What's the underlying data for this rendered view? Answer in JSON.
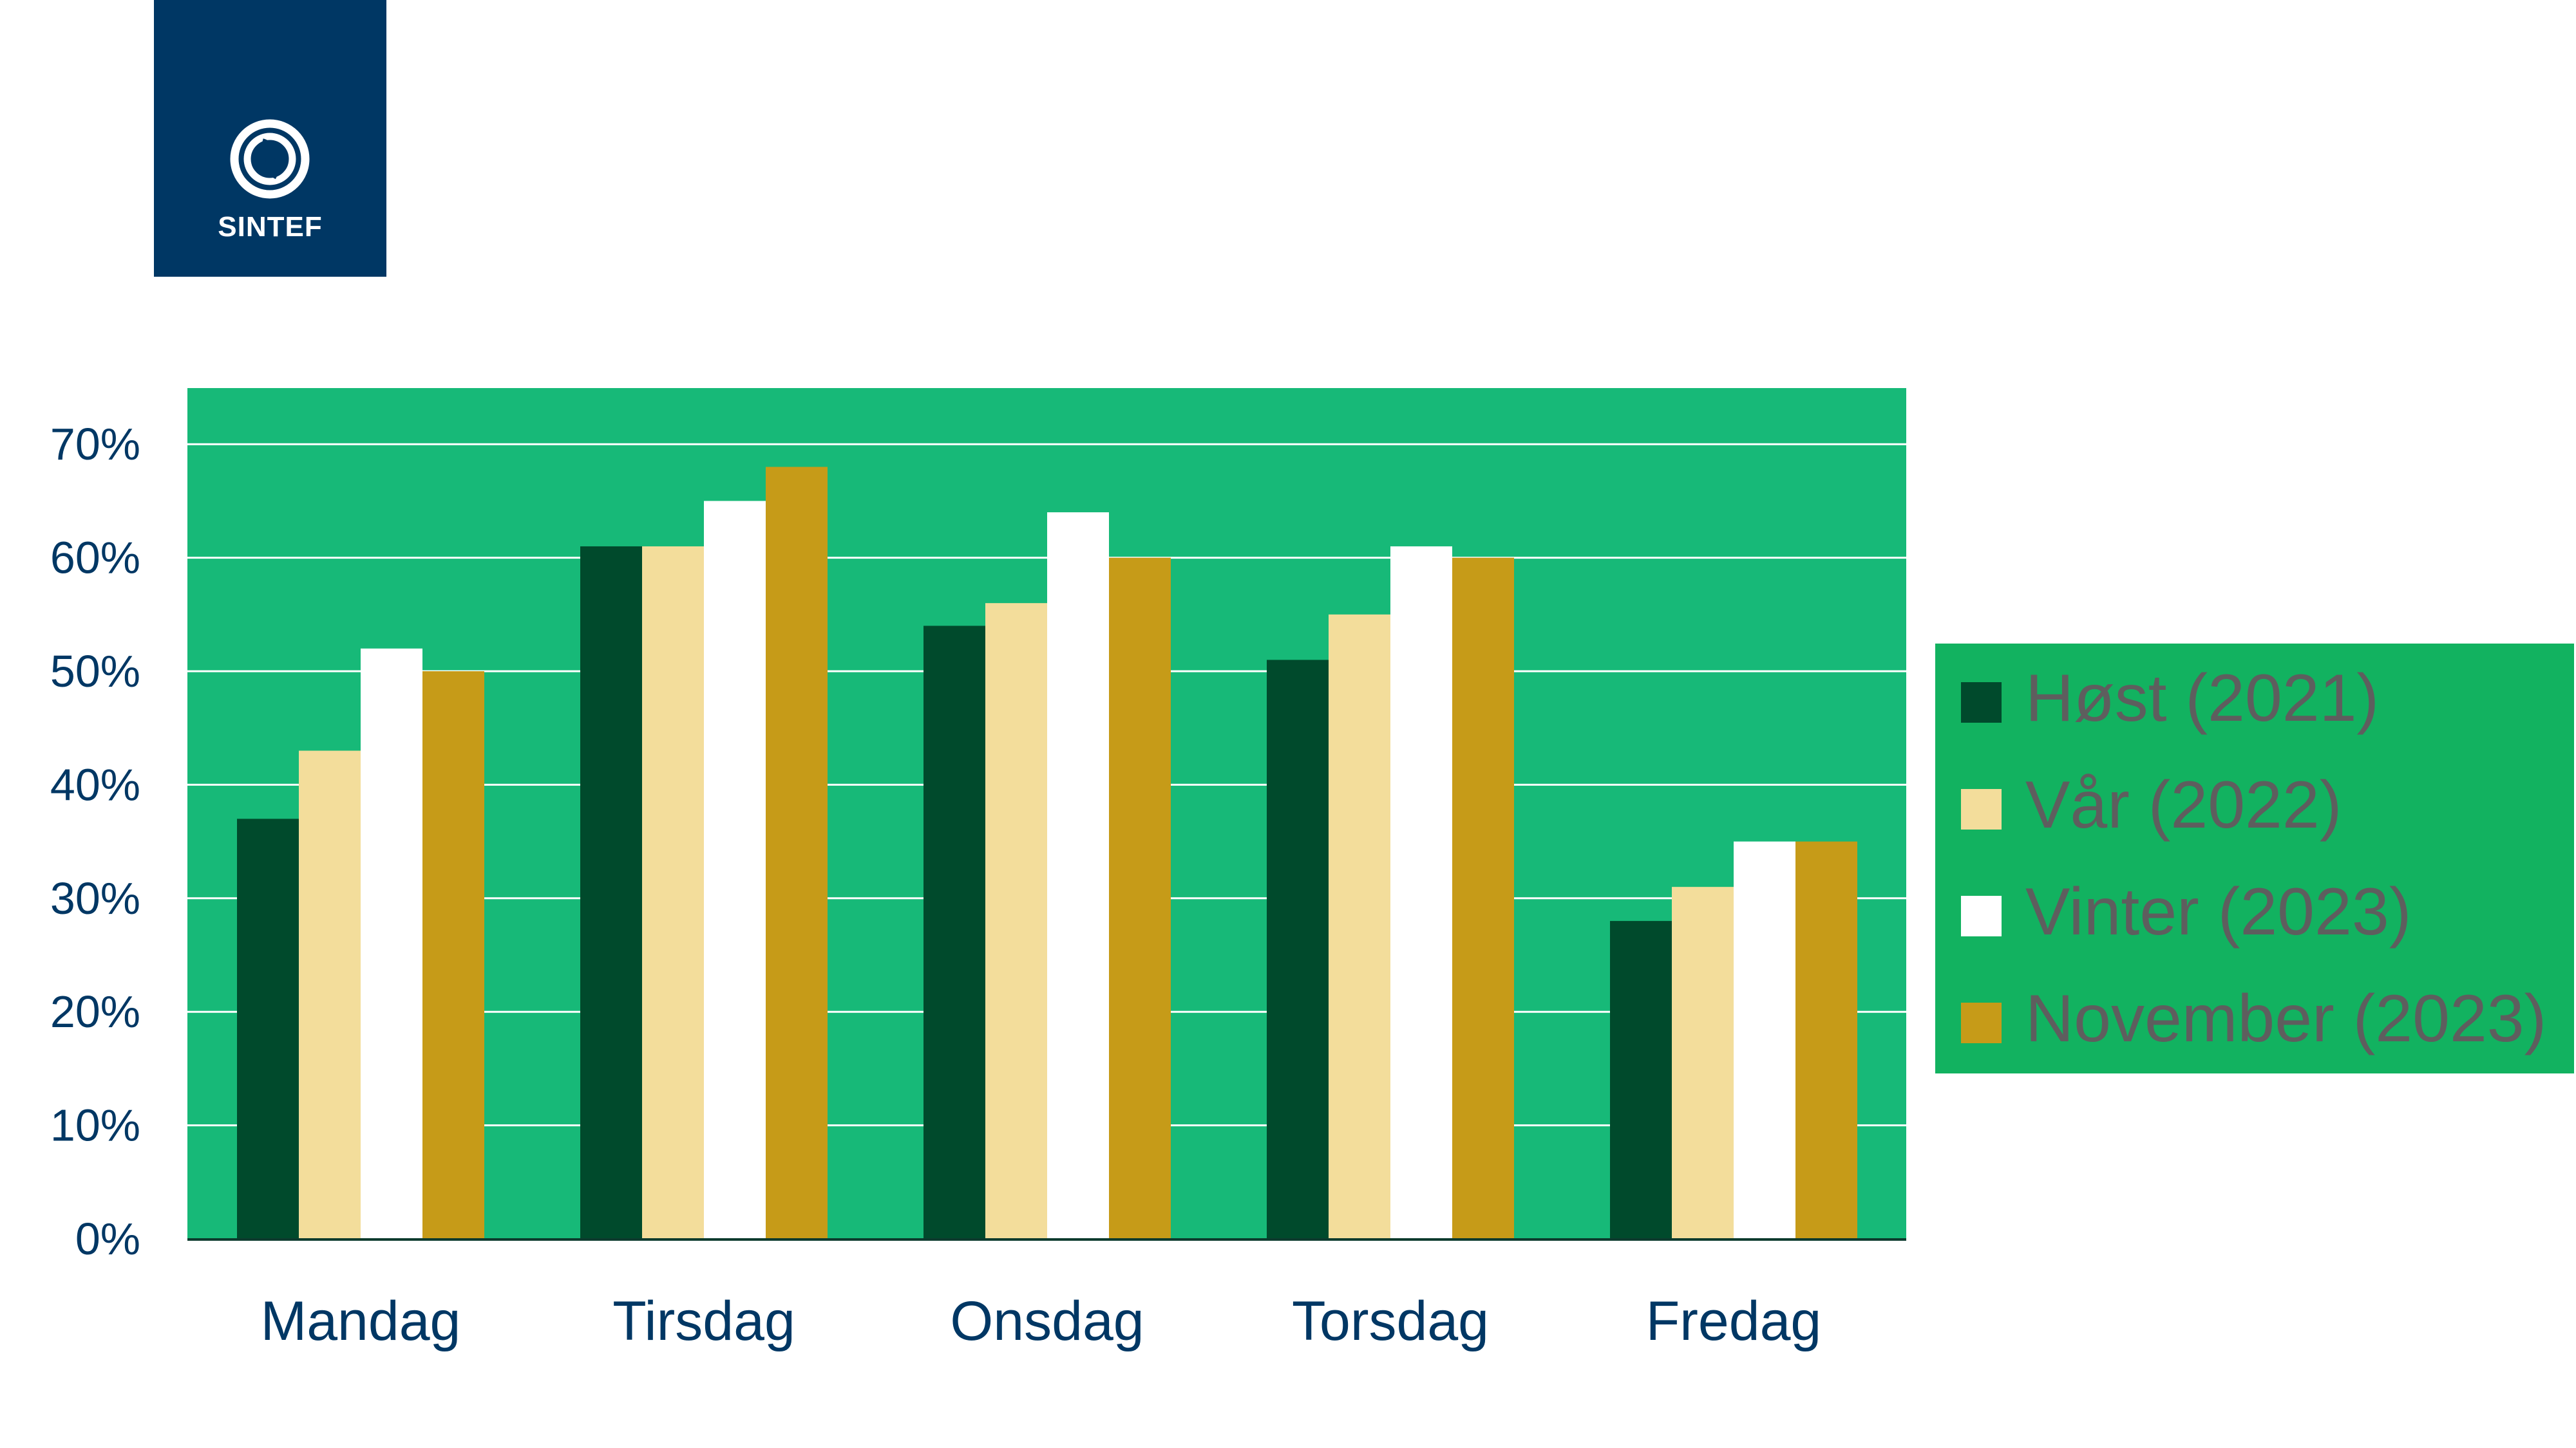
{
  "logo": {
    "text": "SINTEF",
    "background": "#003764"
  },
  "chart_data": {
    "type": "bar",
    "title": "",
    "xlabel": "",
    "ylabel": "",
    "categories": [
      "Mandag",
      "Tirsdag",
      "Onsdag",
      "Torsdag",
      "Fredag"
    ],
    "series": [
      {
        "name": "Høst (2021)",
        "color": "#004a2c",
        "values": [
          37,
          61,
          54,
          51,
          28
        ]
      },
      {
        "name": "Vår (2022)",
        "color": "#f3dd9b",
        "values": [
          43,
          61,
          56,
          55,
          31
        ]
      },
      {
        "name": "Vinter (2023)",
        "color": "#ffffff",
        "values": [
          52,
          65,
          64,
          61,
          35
        ]
      },
      {
        "name": "November (2023)",
        "color": "#c69b18",
        "values": [
          50,
          68,
          60,
          60,
          35
        ]
      }
    ],
    "ylim": [
      0,
      75
    ],
    "yticks": [
      0,
      10,
      20,
      30,
      40,
      50,
      60,
      70
    ],
    "ytick_labels": [
      "0%",
      "10%",
      "20%",
      "30%",
      "40%",
      "50%",
      "60%",
      "70%"
    ],
    "plot_background": "#17b978",
    "grid": true,
    "legend_position": "right"
  }
}
